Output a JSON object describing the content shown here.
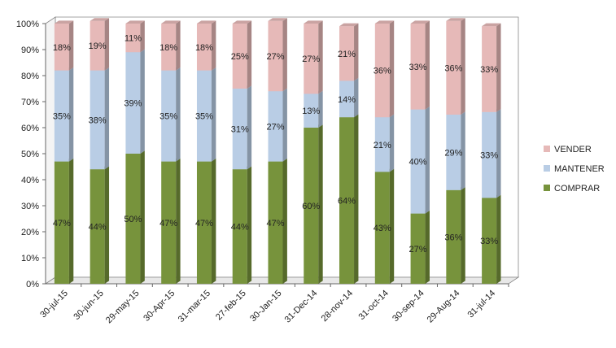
{
  "chart_data": {
    "type": "bar",
    "stacked": true,
    "percent_stacked": true,
    "categories": [
      "30-jul-15",
      "30-jun-15",
      "29-may-15",
      "30-Apr-15",
      "31-mar-15",
      "27-feb-15",
      "30-Jan-15",
      "31-Dec-14",
      "28-nov-14",
      "31-oct-14",
      "30-sep-14",
      "29-Aug-14",
      "31-jul-14"
    ],
    "series": [
      {
        "name": "COMPRAR",
        "values": [
          47,
          44,
          50,
          47,
          47,
          44,
          47,
          60,
          64,
          43,
          27,
          36,
          33
        ],
        "labels": [
          "47%",
          "44%",
          "50%",
          "47%",
          "47%",
          "44%",
          "47%",
          "60%",
          "64%",
          "43%",
          "27%",
          "36%",
          "33%"
        ],
        "color": "#77933c"
      },
      {
        "name": "MANTENER",
        "values": [
          35,
          38,
          39,
          35,
          35,
          31,
          27,
          13,
          14,
          21,
          40,
          29,
          33
        ],
        "labels": [
          "35%",
          "38%",
          "39%",
          "35%",
          "35%",
          "31%",
          "27%",
          "13%",
          "14%",
          "21%",
          "40%",
          "29%",
          "33%"
        ],
        "color": "#b9cde5"
      },
      {
        "name": "VENDER",
        "values": [
          18,
          19,
          11,
          18,
          18,
          25,
          27,
          27,
          21,
          36,
          33,
          36,
          33
        ],
        "labels": [
          "18%",
          "19%",
          "11%",
          "18%",
          "18%",
          "25%",
          "27%",
          "27%",
          "21%",
          "36%",
          "33%",
          "36%",
          "33%"
        ],
        "color": "#e6b9b8"
      }
    ],
    "y_ticks": [
      "0%",
      "10%",
      "20%",
      "30%",
      "40%",
      "50%",
      "60%",
      "70%",
      "80%",
      "90%",
      "100%"
    ],
    "ylim": [
      0,
      100
    ],
    "legend_position": "right",
    "grid": false,
    "style": "3d-bar"
  }
}
